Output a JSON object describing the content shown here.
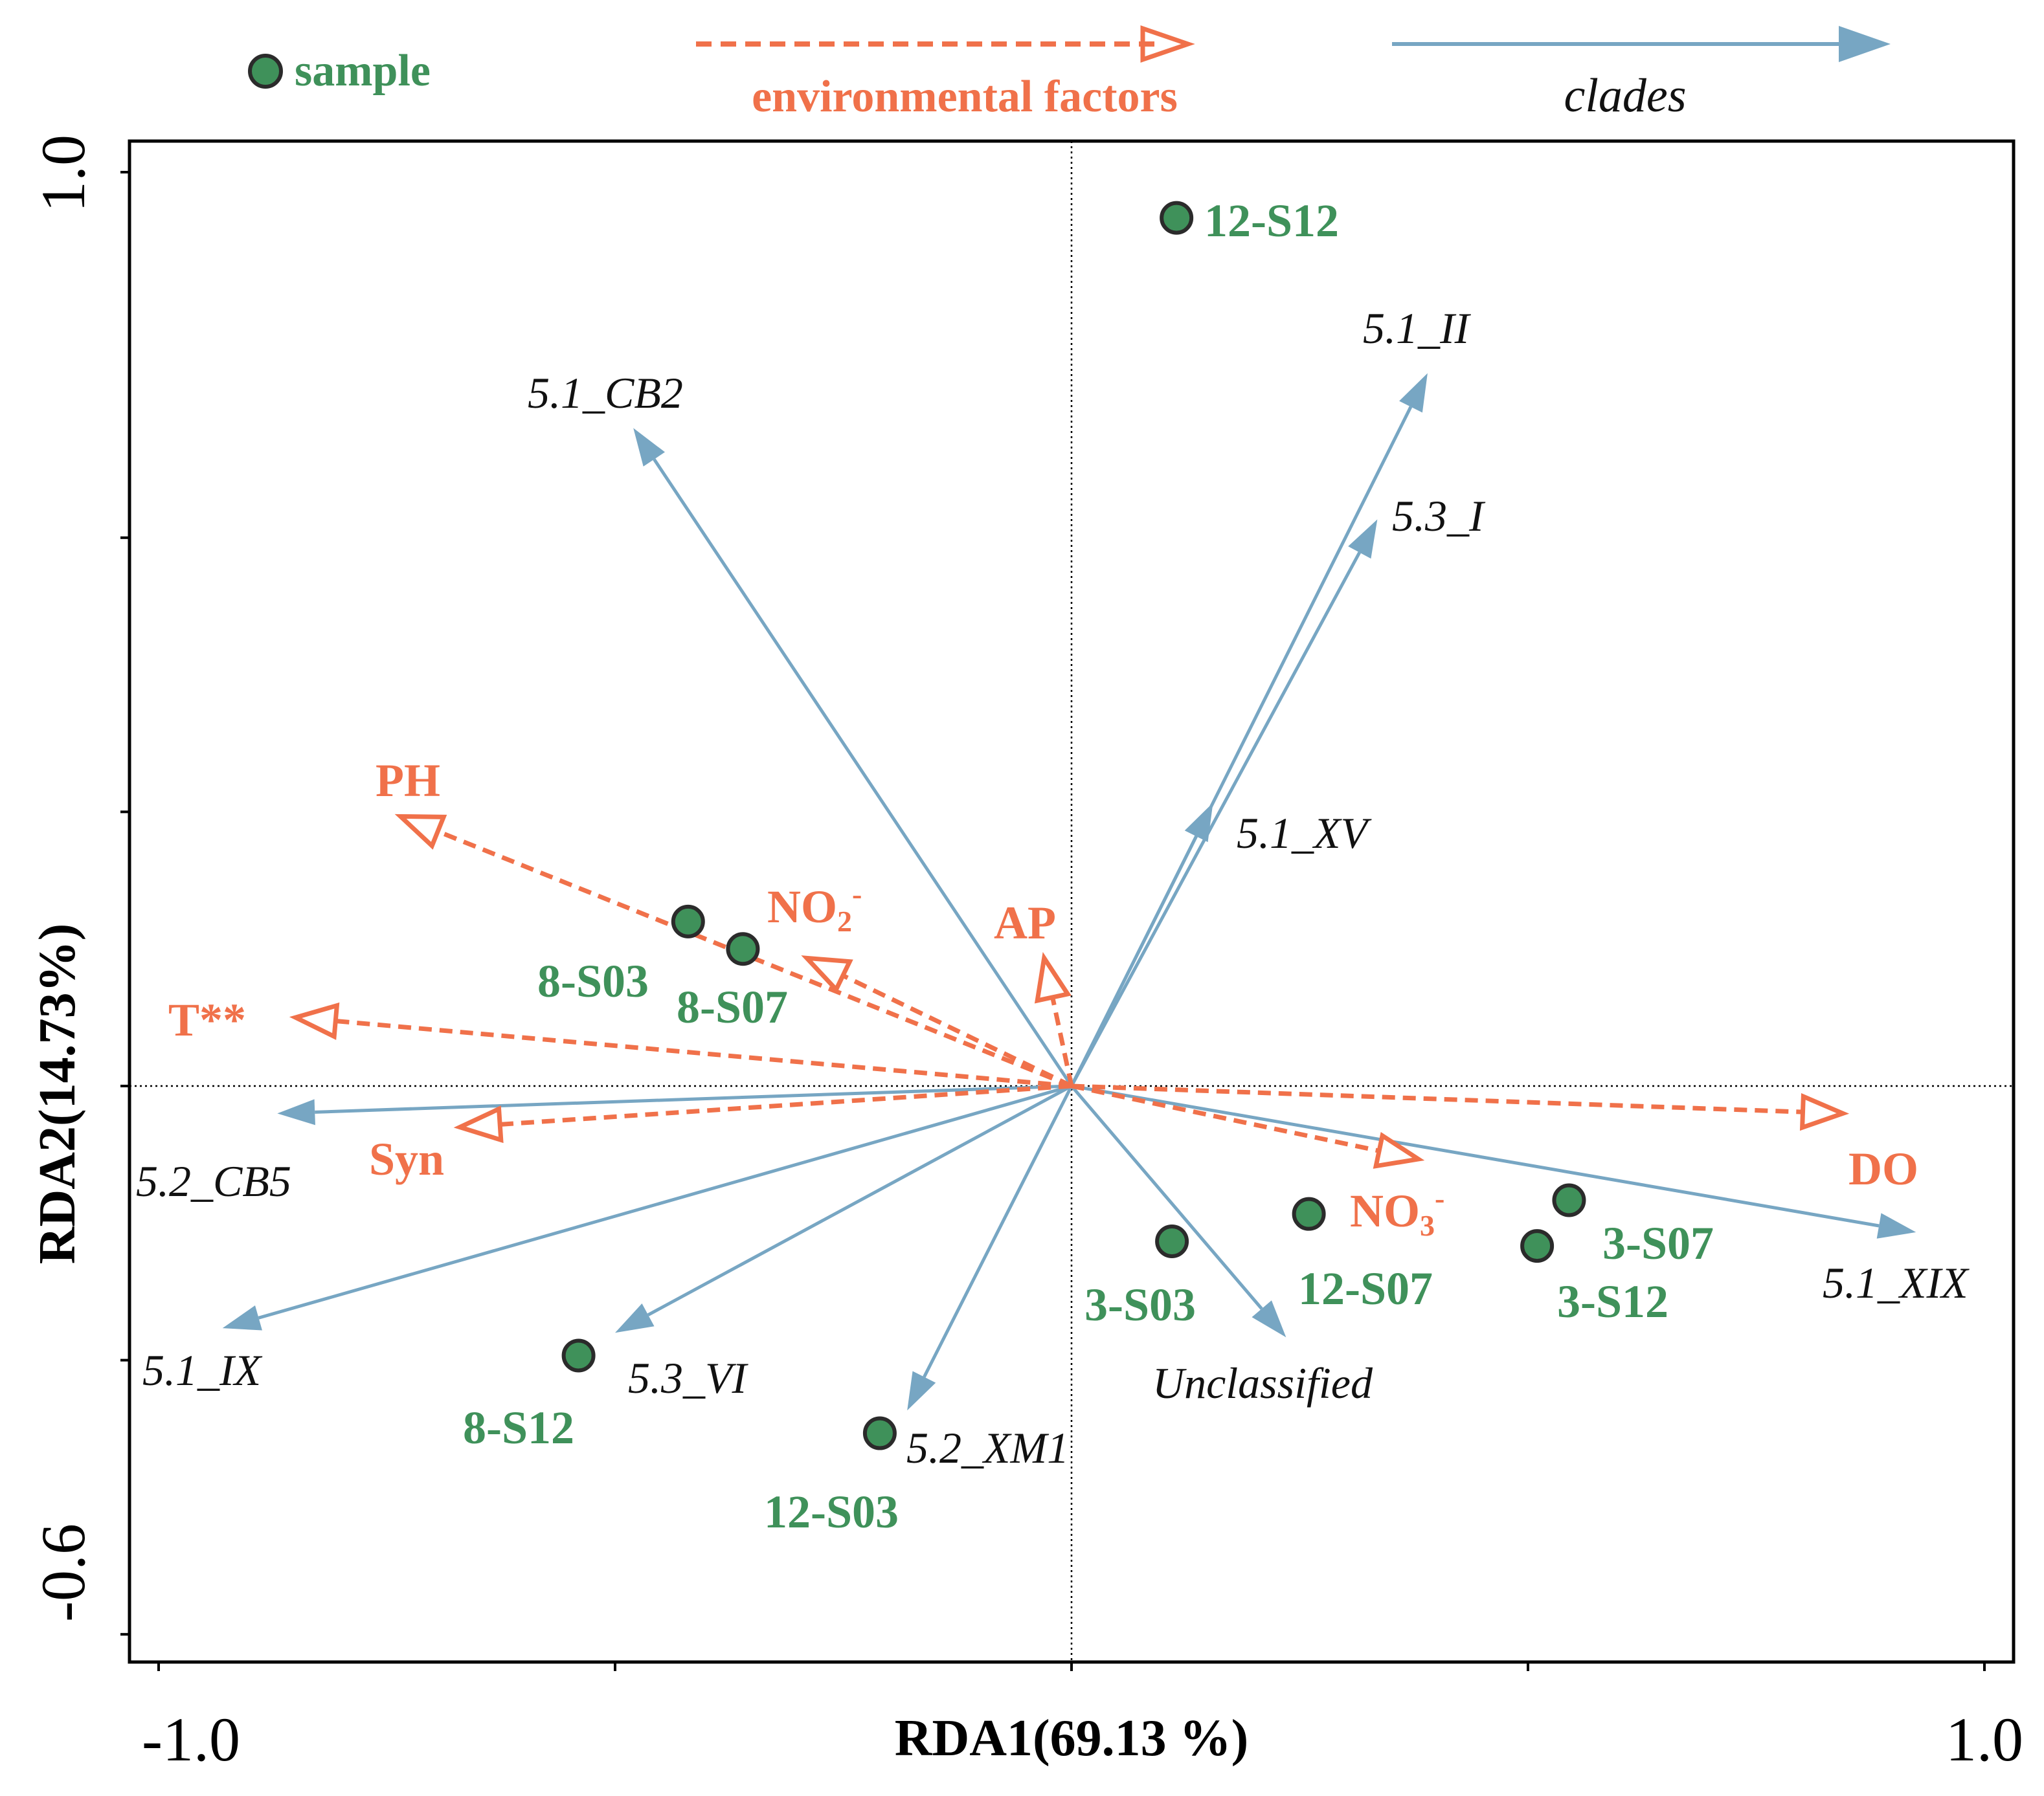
{
  "colors": {
    "sample_fill": "#3f915a",
    "sample_stroke": "#2b2b2b",
    "sample_text": "#3f915a",
    "env": "#f0714a",
    "clade": "#77a6c3",
    "axis": "#000000",
    "label_black": "#111111"
  },
  "legend": {
    "sample_label": "sample",
    "env_label": "environmental factors",
    "clade_label": "clades"
  },
  "chart_data": {
    "type": "scatter",
    "subtype": "RDA biplot",
    "xlabel": "RDA1(69.13 %)",
    "ylabel": "RDA2(14.73%)",
    "xlim": [
      -1.0,
      1.0
    ],
    "ylim": [
      -0.6,
      1.0
    ],
    "xticks": [
      -1.0,
      -0.5,
      0.0,
      0.5,
      1.0
    ],
    "yticks": [
      -0.6,
      -0.3,
      0.0,
      0.3,
      0.6,
      1.0
    ],
    "xtick_labels": [
      "-1.0",
      "1.0"
    ],
    "ytick_labels": [
      "-0.6",
      "1.0"
    ],
    "zero_lines": true,
    "samples": [
      {
        "name": "12-S12",
        "x": 0.115,
        "y": 0.95
      },
      {
        "name": "8-S03",
        "x": -0.42,
        "y": 0.18
      },
      {
        "name": "8-S07",
        "x": -0.36,
        "y": 0.15
      },
      {
        "name": "3-S03",
        "x": 0.11,
        "y": -0.17
      },
      {
        "name": "12-S07",
        "x": 0.26,
        "y": -0.14
      },
      {
        "name": "3-S07",
        "x": 0.545,
        "y": -0.125
      },
      {
        "name": "3-S12",
        "x": 0.51,
        "y": -0.175
      },
      {
        "name": "8-S12",
        "x": -0.54,
        "y": -0.295
      },
      {
        "name": "12-S03",
        "x": -0.21,
        "y": -0.38
      }
    ],
    "env_factors": [
      {
        "name": "PH",
        "sub": "",
        "sup": "",
        "x": -0.735,
        "y": 0.295
      },
      {
        "name": "NO",
        "sub": "2",
        "sup": "-",
        "x": -0.29,
        "y": 0.14
      },
      {
        "name": "AP",
        "sub": "",
        "sup": "",
        "x": -0.03,
        "y": 0.14
      },
      {
        "name": "T**",
        "sub": "",
        "sup": "",
        "x": -0.85,
        "y": 0.075
      },
      {
        "name": "Syn",
        "sub": "",
        "sup": "",
        "x": -0.67,
        "y": -0.045
      },
      {
        "name": "NO",
        "sub": "3",
        "sup": "-",
        "x": 0.38,
        "y": -0.08
      },
      {
        "name": "DO",
        "sub": "",
        "sup": "",
        "x": 0.845,
        "y": -0.03
      }
    ],
    "clades": [
      {
        "name": "5.1_CB2",
        "x": -0.48,
        "y": 0.72
      },
      {
        "name": "5.1_II",
        "x": 0.39,
        "y": 0.78
      },
      {
        "name": "5.3_I",
        "x": 0.335,
        "y": 0.62
      },
      {
        "name": "5.1_XV",
        "x": 0.155,
        "y": 0.31
      },
      {
        "name": "5.2_CB5",
        "x": -0.87,
        "y": -0.03
      },
      {
        "name": "5.1_IX",
        "x": -0.93,
        "y": -0.265
      },
      {
        "name": "5.3_VI",
        "x": -0.5,
        "y": -0.27
      },
      {
        "name": "5.2_XM1",
        "x": -0.18,
        "y": -0.355
      },
      {
        "name": "Unclassified",
        "x": 0.235,
        "y": -0.275
      },
      {
        "name": "5.1_XIX",
        "x": 0.925,
        "y": -0.16
      }
    ]
  }
}
